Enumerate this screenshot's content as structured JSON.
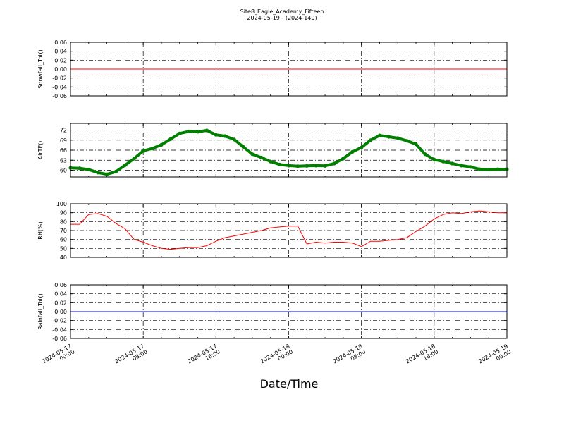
{
  "figure": {
    "title_line1": "Site8_Eagle_Academy_Fifteen",
    "title_line2": "2024-05-19 - (2024-140)",
    "xlabel": "Date/Time",
    "x_ticks": [
      {
        "line1": "2024-05-17",
        "line2": "00:00"
      },
      {
        "line1": "2024-05-17",
        "line2": "08:00"
      },
      {
        "line1": "2024-05-17",
        "line2": "16:00"
      },
      {
        "line1": "2024-05-18",
        "line2": "00:00"
      },
      {
        "line1": "2024-05-18",
        "line2": "08:00"
      },
      {
        "line1": "2024-05-18",
        "line2": "16:00"
      },
      {
        "line1": "2024-05-19",
        "line2": "00:00"
      }
    ],
    "x_range": [
      "2024-05-17 00:00",
      "2024-05-19 00:00"
    ]
  },
  "chart_data": [
    {
      "type": "line",
      "ylabel": "Snowfall_Tot()",
      "ylim": [
        -0.06,
        0.06
      ],
      "yticks": [
        "-0.06",
        "-0.04",
        "-0.02",
        "0.00",
        "0.02",
        "0.04",
        "0.06"
      ],
      "color": "#ff0000",
      "grid": true,
      "x_hours": [
        0,
        48
      ],
      "y": [
        0.0,
        0.0
      ]
    },
    {
      "type": "scatter",
      "ylabel": "AirTF()",
      "ylim": [
        58,
        74
      ],
      "yticks": [
        "60",
        "63",
        "66",
        "69",
        "72"
      ],
      "color": "#007f00",
      "grid": true,
      "x_hours": [
        0,
        1,
        2,
        3,
        4,
        5,
        6,
        7,
        8,
        9,
        10,
        11,
        12,
        13,
        14,
        15,
        16,
        17,
        18,
        19,
        20,
        21,
        22,
        23,
        24,
        25,
        26,
        27,
        28,
        29,
        30,
        31,
        32,
        33,
        34,
        35,
        36,
        37,
        38,
        39,
        40,
        41,
        42,
        43,
        44,
        45,
        46,
        47,
        48
      ],
      "y": [
        60.7,
        60.6,
        60.2,
        59.3,
        58.8,
        59.6,
        61.5,
        63.5,
        65.8,
        66.5,
        67.6,
        69.3,
        71.0,
        71.6,
        71.5,
        71.9,
        70.6,
        70.2,
        69.2,
        67.0,
        64.8,
        63.8,
        62.6,
        61.7,
        61.4,
        61.2,
        61.3,
        61.4,
        61.3,
        62.0,
        63.5,
        65.5,
        66.8,
        69.0,
        70.4,
        70.0,
        69.6,
        68.8,
        67.8,
        64.8,
        63.2,
        62.6,
        62.0,
        61.4,
        61.0,
        60.3,
        60.2,
        60.3,
        60.3
      ]
    },
    {
      "type": "line",
      "ylabel": "RH(%)",
      "ylim": [
        40,
        100
      ],
      "yticks": [
        "40",
        "50",
        "60",
        "70",
        "80",
        "90",
        "100"
      ],
      "color": "#ff0000",
      "grid": true,
      "x_hours": [
        0,
        1,
        2,
        3,
        4,
        5,
        6,
        7,
        8,
        9,
        10,
        11,
        12,
        13,
        14,
        15,
        16,
        17,
        18,
        19,
        20,
        21,
        22,
        23,
        24,
        25,
        26,
        27,
        28,
        29,
        30,
        31,
        32,
        33,
        34,
        35,
        36,
        37,
        38,
        39,
        40,
        41,
        42,
        43,
        44,
        45,
        46,
        47,
        48
      ],
      "y": [
        77,
        77,
        88,
        89,
        86,
        78,
        72,
        60,
        57,
        53,
        50,
        49,
        50,
        51,
        51,
        53,
        58,
        62,
        64,
        66,
        68,
        70,
        73,
        74,
        75,
        75,
        55,
        57,
        56,
        57,
        57,
        56,
        52,
        58,
        58,
        59,
        60,
        62,
        69,
        75,
        83,
        88,
        90,
        89,
        91,
        92,
        91,
        90,
        90
      ]
    },
    {
      "type": "line",
      "ylabel": "Rainfall_Tot()",
      "ylim": [
        -0.06,
        0.06
      ],
      "yticks": [
        "-0.06",
        "-0.04",
        "-0.02",
        "0.00",
        "0.02",
        "0.04",
        "0.06"
      ],
      "color": "#0000ff",
      "grid": true,
      "x_hours": [
        0,
        48
      ],
      "y": [
        0.0,
        0.0
      ]
    }
  ]
}
